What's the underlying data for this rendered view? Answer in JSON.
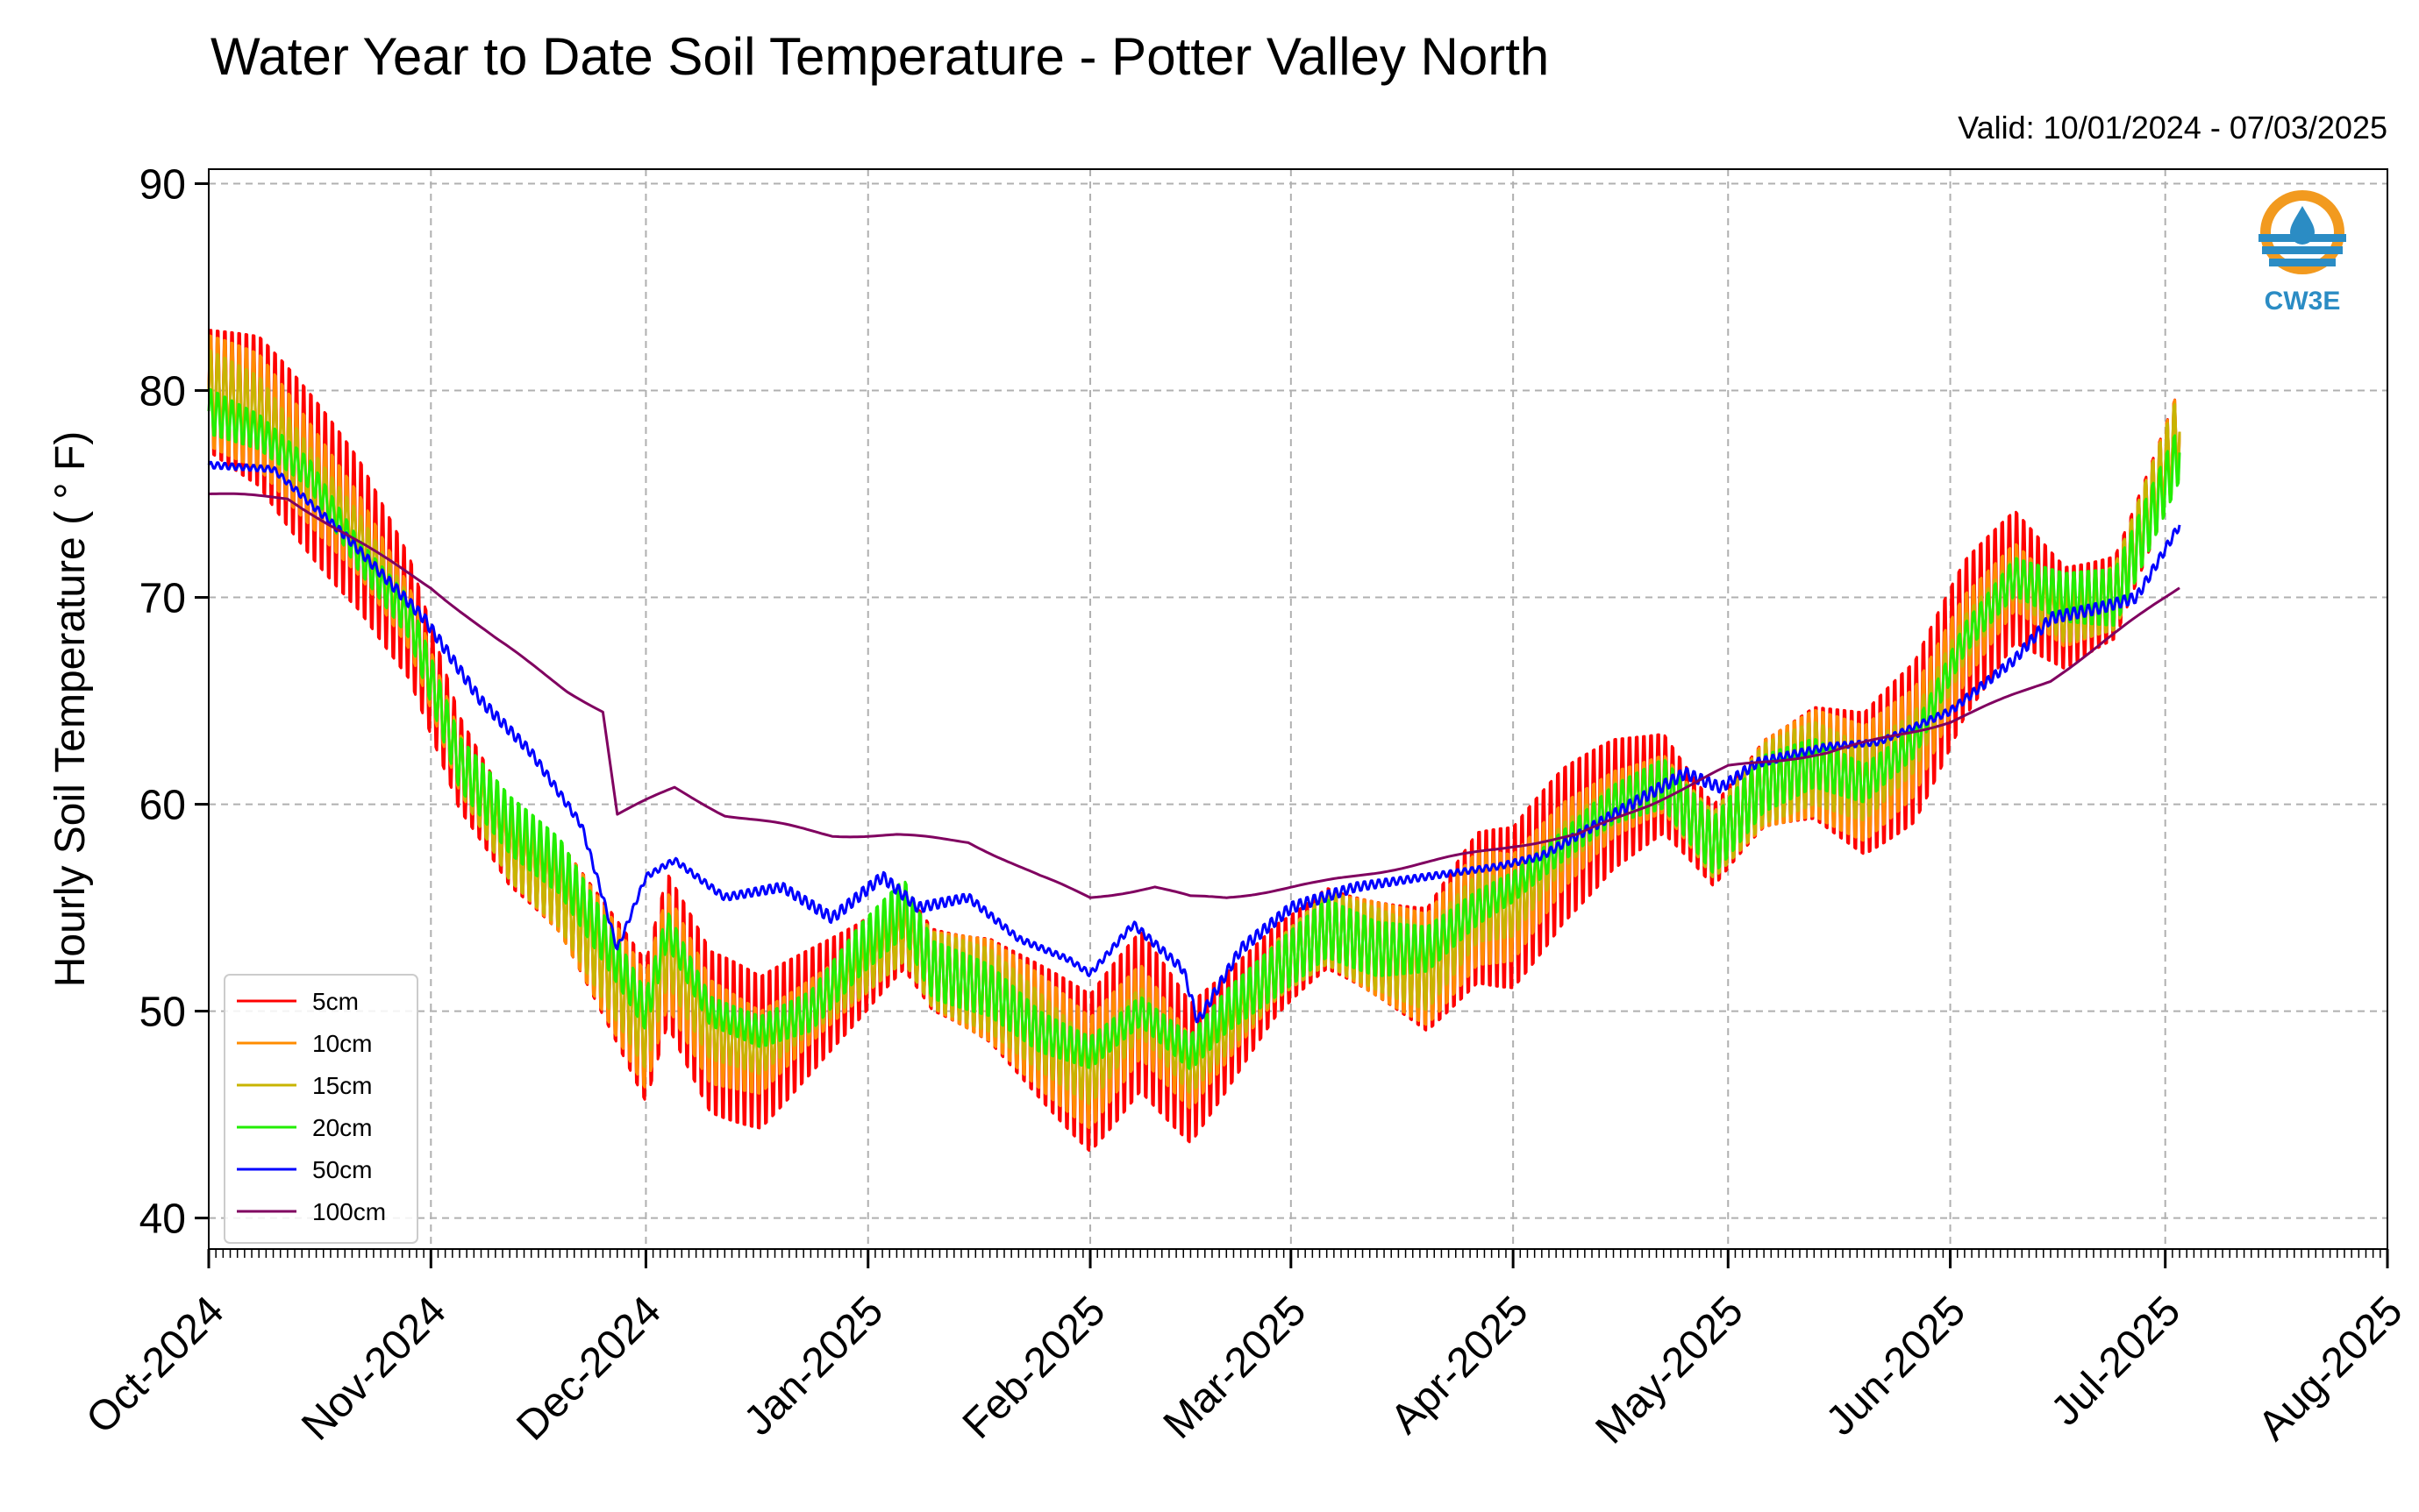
{
  "title": "Water Year to Date Soil Temperature - Potter Valley North",
  "valid_label": "Valid: 10/01/2024 - 07/03/2025",
  "logo_text": "CW3E",
  "chart_data": {
    "type": "line",
    "title": "Water Year to Date Soil Temperature - Potter Valley North",
    "ylabel": "Hourly Soil Temperature ( ° F)",
    "xlabel": "",
    "x_ticks": [
      "Oct-2024",
      "Nov-2024",
      "Dec-2024",
      "Jan-2025",
      "Feb-2025",
      "Mar-2025",
      "Apr-2025",
      "May-2025",
      "Jun-2025",
      "Jul-2025",
      "Aug-2025"
    ],
    "xlim": [
      "2024-10-01",
      "2025-08-01"
    ],
    "ylim": [
      38.5,
      90.7
    ],
    "y_ticks": [
      40,
      50,
      60,
      70,
      80,
      90
    ],
    "grid": true,
    "legend_position": "lower-left",
    "series": [
      {
        "name": "5cm",
        "color": "#ff0000",
        "amplitude": 4.5,
        "values": [
          [
            "2024-10-01",
            80
          ],
          [
            "2024-10-08",
            79
          ],
          [
            "2024-10-15",
            76
          ],
          [
            "2024-10-22",
            73
          ],
          [
            "2024-10-29",
            69
          ],
          [
            "2024-11-05",
            62
          ],
          [
            "2024-11-12",
            58
          ],
          [
            "2024-11-19",
            56
          ],
          [
            "2024-11-26",
            52
          ],
          [
            "2024-12-01",
            49
          ],
          [
            "2024-12-04",
            53
          ],
          [
            "2024-12-10",
            49
          ],
          [
            "2024-12-17",
            48
          ],
          [
            "2024-12-24",
            50
          ],
          [
            "2024-12-31",
            52
          ],
          [
            "2025-01-06",
            54
          ],
          [
            "2025-01-10",
            52
          ],
          [
            "2025-01-18",
            51
          ],
          [
            "2025-01-25",
            49
          ],
          [
            "2025-02-01",
            47
          ],
          [
            "2025-02-08",
            50
          ],
          [
            "2025-02-15",
            47
          ],
          [
            "2025-02-20",
            49
          ],
          [
            "2025-02-27",
            52
          ],
          [
            "2025-03-06",
            54
          ],
          [
            "2025-03-13",
            53
          ],
          [
            "2025-03-20",
            52
          ],
          [
            "2025-03-27",
            55
          ],
          [
            "2025-04-01",
            55
          ],
          [
            "2025-04-08",
            58
          ],
          [
            "2025-04-15",
            60
          ],
          [
            "2025-04-22",
            61
          ],
          [
            "2025-04-29",
            58
          ],
          [
            "2025-05-06",
            61
          ],
          [
            "2025-05-13",
            62
          ],
          [
            "2025-05-20",
            61
          ],
          [
            "2025-05-27",
            63
          ],
          [
            "2025-06-03",
            68
          ],
          [
            "2025-06-10",
            71
          ],
          [
            "2025-06-17",
            69
          ],
          [
            "2025-06-24",
            70
          ],
          [
            "2025-07-03",
            78
          ]
        ]
      },
      {
        "name": "10cm",
        "color": "#ff8c00",
        "amplitude": 3.2,
        "values": [
          [
            "2024-10-01",
            80
          ],
          [
            "2024-10-08",
            79
          ],
          [
            "2024-10-15",
            76
          ],
          [
            "2024-10-22",
            73
          ],
          [
            "2024-10-29",
            69
          ],
          [
            "2024-11-05",
            62
          ],
          [
            "2024-11-12",
            58
          ],
          [
            "2024-11-19",
            56
          ],
          [
            "2024-11-26",
            52
          ],
          [
            "2024-12-01",
            49
          ],
          [
            "2024-12-04",
            53
          ],
          [
            "2024-12-10",
            49
          ],
          [
            "2024-12-17",
            48
          ],
          [
            "2024-12-24",
            50
          ],
          [
            "2024-12-31",
            52
          ],
          [
            "2025-01-06",
            54
          ],
          [
            "2025-01-10",
            52
          ],
          [
            "2025-01-18",
            51
          ],
          [
            "2025-01-25",
            49
          ],
          [
            "2025-02-01",
            47
          ],
          [
            "2025-02-08",
            50
          ],
          [
            "2025-02-15",
            47
          ],
          [
            "2025-02-20",
            49
          ],
          [
            "2025-02-27",
            52
          ],
          [
            "2025-03-06",
            54
          ],
          [
            "2025-03-13",
            53
          ],
          [
            "2025-03-20",
            52
          ],
          [
            "2025-03-27",
            55
          ],
          [
            "2025-04-01",
            55
          ],
          [
            "2025-04-08",
            58
          ],
          [
            "2025-04-15",
            60
          ],
          [
            "2025-04-22",
            61
          ],
          [
            "2025-04-29",
            58
          ],
          [
            "2025-05-06",
            61
          ],
          [
            "2025-05-13",
            62
          ],
          [
            "2025-05-20",
            61
          ],
          [
            "2025-05-27",
            63
          ],
          [
            "2025-06-03",
            68
          ],
          [
            "2025-06-10",
            71
          ],
          [
            "2025-06-17",
            69
          ],
          [
            "2025-06-24",
            70
          ],
          [
            "2025-07-03",
            78
          ]
        ]
      },
      {
        "name": "15cm",
        "color": "#c8b400",
        "amplitude": 2.3,
        "values": [
          [
            "2024-10-01",
            80
          ],
          [
            "2024-10-08",
            79
          ],
          [
            "2024-10-15",
            76
          ],
          [
            "2024-10-22",
            73
          ],
          [
            "2024-10-29",
            69
          ],
          [
            "2024-11-05",
            62
          ],
          [
            "2024-11-12",
            58
          ],
          [
            "2024-11-19",
            56
          ],
          [
            "2024-11-26",
            52
          ],
          [
            "2024-12-01",
            49
          ],
          [
            "2024-12-04",
            53
          ],
          [
            "2024-12-10",
            49
          ],
          [
            "2024-12-17",
            48
          ],
          [
            "2024-12-24",
            50
          ],
          [
            "2024-12-31",
            52
          ],
          [
            "2025-01-06",
            54
          ],
          [
            "2025-01-10",
            52
          ],
          [
            "2025-01-18",
            51
          ],
          [
            "2025-01-25",
            49
          ],
          [
            "2025-02-01",
            47
          ],
          [
            "2025-02-08",
            50
          ],
          [
            "2025-02-15",
            47
          ],
          [
            "2025-02-20",
            49
          ],
          [
            "2025-02-27",
            52
          ],
          [
            "2025-03-06",
            54
          ],
          [
            "2025-03-13",
            53
          ],
          [
            "2025-03-20",
            52
          ],
          [
            "2025-03-27",
            55
          ],
          [
            "2025-04-01",
            55
          ],
          [
            "2025-04-08",
            58
          ],
          [
            "2025-04-15",
            60
          ],
          [
            "2025-04-22",
            61
          ],
          [
            "2025-04-29",
            58
          ],
          [
            "2025-05-06",
            61
          ],
          [
            "2025-05-13",
            62
          ],
          [
            "2025-05-20",
            61
          ],
          [
            "2025-05-27",
            63
          ],
          [
            "2025-06-03",
            68
          ],
          [
            "2025-06-10",
            71
          ],
          [
            "2025-06-17",
            69
          ],
          [
            "2025-06-24",
            70
          ],
          [
            "2025-07-03",
            78
          ]
        ]
      },
      {
        "name": "20cm",
        "color": "#22ee00",
        "amplitude": 1.6,
        "values": [
          [
            "2024-10-01",
            79
          ],
          [
            "2024-10-08",
            78
          ],
          [
            "2024-10-15",
            76
          ],
          [
            "2024-10-22",
            72
          ],
          [
            "2024-10-29",
            69
          ],
          [
            "2024-11-05",
            62
          ],
          [
            "2024-11-12",
            59
          ],
          [
            "2024-11-19",
            57
          ],
          [
            "2024-11-26",
            53
          ],
          [
            "2024-12-01",
            50
          ],
          [
            "2024-12-04",
            54
          ],
          [
            "2024-12-10",
            50
          ],
          [
            "2024-12-17",
            49
          ],
          [
            "2024-12-24",
            50
          ],
          [
            "2024-12-31",
            53
          ],
          [
            "2025-01-06",
            55
          ],
          [
            "2025-01-10",
            52
          ],
          [
            "2025-01-18",
            51
          ],
          [
            "2025-01-25",
            49
          ],
          [
            "2025-02-01",
            48
          ],
          [
            "2025-02-08",
            50
          ],
          [
            "2025-02-15",
            48
          ],
          [
            "2025-02-20",
            50
          ],
          [
            "2025-02-27",
            52
          ],
          [
            "2025-03-06",
            54
          ],
          [
            "2025-03-13",
            53
          ],
          [
            "2025-03-20",
            53
          ],
          [
            "2025-03-27",
            55
          ],
          [
            "2025-04-01",
            56
          ],
          [
            "2025-04-08",
            58
          ],
          [
            "2025-04-15",
            60
          ],
          [
            "2025-04-22",
            61
          ],
          [
            "2025-04-29",
            58
          ],
          [
            "2025-05-06",
            61
          ],
          [
            "2025-05-13",
            62
          ],
          [
            "2025-05-20",
            61
          ],
          [
            "2025-05-27",
            63
          ],
          [
            "2025-06-03",
            68
          ],
          [
            "2025-06-10",
            71
          ],
          [
            "2025-06-17",
            70
          ],
          [
            "2025-06-24",
            70
          ],
          [
            "2025-07-03",
            77
          ]
        ]
      },
      {
        "name": "50cm",
        "color": "#0000ff",
        "amplitude": 0.3,
        "values": [
          [
            "2024-10-01",
            76.4
          ],
          [
            "2024-10-10",
            76.2
          ],
          [
            "2024-10-20",
            73
          ],
          [
            "2024-10-31",
            69
          ],
          [
            "2024-11-08",
            65
          ],
          [
            "2024-11-15",
            62.5
          ],
          [
            "2024-11-22",
            59
          ],
          [
            "2024-11-25",
            55.5
          ],
          [
            "2024-11-27",
            53
          ],
          [
            "2024-12-01",
            56.5
          ],
          [
            "2024-12-05",
            57.3
          ],
          [
            "2024-12-12",
            55.5
          ],
          [
            "2024-12-20",
            56
          ],
          [
            "2024-12-27",
            54.5
          ],
          [
            "2025-01-03",
            56.5
          ],
          [
            "2025-01-08",
            55
          ],
          [
            "2025-01-15",
            55.5
          ],
          [
            "2025-01-22",
            53.5
          ],
          [
            "2025-01-29",
            52.5
          ],
          [
            "2025-02-01",
            51.8
          ],
          [
            "2025-02-07",
            54.2
          ],
          [
            "2025-02-14",
            52
          ],
          [
            "2025-02-16",
            49.5
          ],
          [
            "2025-02-22",
            53
          ],
          [
            "2025-03-01",
            55
          ],
          [
            "2025-03-10",
            56
          ],
          [
            "2025-03-20",
            56.5
          ],
          [
            "2025-03-30",
            57
          ],
          [
            "2025-04-05",
            57.5
          ],
          [
            "2025-04-15",
            59.5
          ],
          [
            "2025-04-25",
            61.5
          ],
          [
            "2025-04-30",
            60.8
          ],
          [
            "2025-05-05",
            62
          ],
          [
            "2025-05-15",
            62.8
          ],
          [
            "2025-05-22",
            63
          ],
          [
            "2025-06-01",
            64.5
          ],
          [
            "2025-06-10",
            67
          ],
          [
            "2025-06-15",
            69
          ],
          [
            "2025-06-22",
            69.5
          ],
          [
            "2025-06-27",
            70
          ],
          [
            "2025-07-03",
            73.5
          ]
        ]
      },
      {
        "name": "100cm",
        "color": "#800060",
        "amplitude": 0,
        "values": [
          [
            "2024-10-01",
            75
          ],
          [
            "2024-10-12",
            74.8
          ],
          [
            "2024-10-25",
            72
          ],
          [
            "2024-11-01",
            70.5
          ],
          [
            "2024-11-10",
            68
          ],
          [
            "2024-11-20",
            65.5
          ],
          [
            "2024-11-25",
            64.5
          ],
          [
            "2024-11-27",
            59.5
          ],
          [
            "2024-12-05",
            60.8
          ],
          [
            "2024-12-12",
            59.5
          ],
          [
            "2024-12-20",
            59
          ],
          [
            "2024-12-27",
            58.5
          ],
          [
            "2025-01-05",
            58.5
          ],
          [
            "2025-01-15",
            58.2
          ],
          [
            "2025-01-25",
            56.5
          ],
          [
            "2025-02-01",
            55.5
          ],
          [
            "2025-02-10",
            56
          ],
          [
            "2025-02-15",
            55.5
          ],
          [
            "2025-02-20",
            55.5
          ],
          [
            "2025-03-05",
            56.2
          ],
          [
            "2025-03-20",
            57.2
          ],
          [
            "2025-04-01",
            58
          ],
          [
            "2025-04-10",
            58.5
          ],
          [
            "2025-04-20",
            60
          ],
          [
            "2025-05-01",
            61.8
          ],
          [
            "2025-05-15",
            62.5
          ],
          [
            "2025-06-01",
            64
          ],
          [
            "2025-06-15",
            66
          ],
          [
            "2025-07-03",
            70.5
          ]
        ]
      }
    ]
  }
}
